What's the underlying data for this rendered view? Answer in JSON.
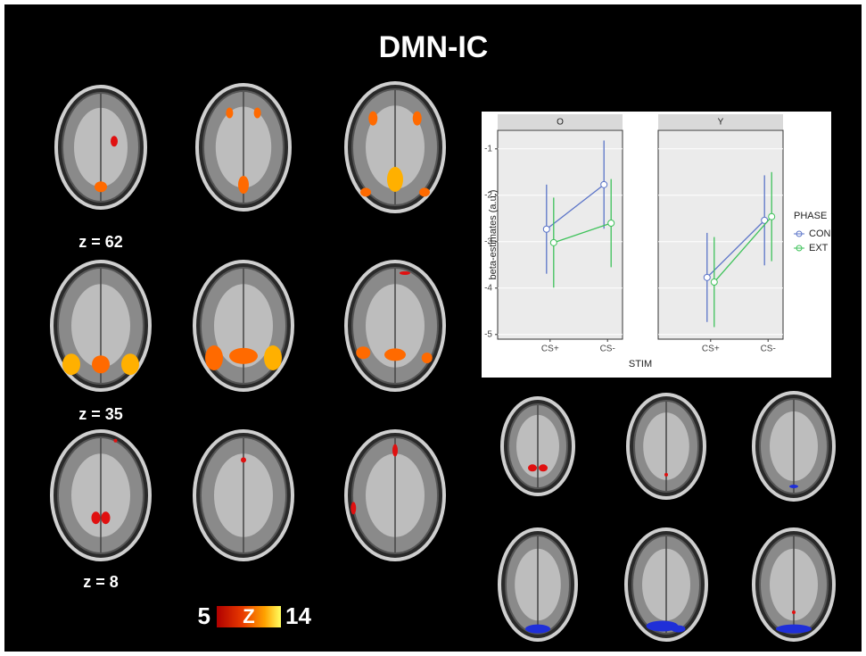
{
  "figure": {
    "title": "DMN-IC",
    "z_labels": [
      "z = 62",
      "z = 35",
      "z = 8"
    ],
    "colorbar": {
      "min": 5,
      "label": "Z",
      "max": 14
    }
  },
  "chart_data": {
    "type": "line",
    "facets": [
      "O",
      "Y"
    ],
    "categories": [
      "CS+",
      "CS-"
    ],
    "xlabel": "STIM",
    "ylabel": "beta-estimates (a.u.)",
    "legend_title": "PHASE",
    "ylim": [
      -5.1,
      -0.6
    ],
    "yticks": [
      -5,
      -4,
      -3,
      -2,
      -1
    ],
    "series": [
      {
        "name": "CON",
        "color": "#5b74c8",
        "values": [
          [
            -2.73,
            -1.77
          ],
          [
            -3.77,
            -2.54
          ]
        ],
        "errors": [
          [
            0.96,
            0.95
          ],
          [
            0.96,
            0.97
          ]
        ]
      },
      {
        "name": "EXT",
        "color": "#3ec25a",
        "values": [
          [
            -3.02,
            -2.6
          ],
          [
            -3.87,
            -2.46
          ]
        ],
        "errors": [
          [
            0.97,
            0.95
          ],
          [
            0.97,
            0.96
          ]
        ]
      }
    ]
  }
}
